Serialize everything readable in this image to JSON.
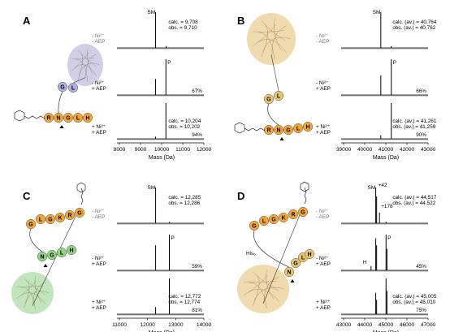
{
  "figure": {
    "panels": [
      {
        "letter": "A",
        "protein_color": "#a9a7d4",
        "beads_top": [
          "G",
          "L"
        ],
        "top_bead_color": "#b0aee0",
        "beads_bottom": [
          "R",
          "N",
          "G",
          "L",
          "H"
        ],
        "bottom_bead_color": "#f2a535",
        "his_label": "",
        "spectra": [
          {
            "cond": [
              "- Ni²⁺",
              "- AEP"
            ],
            "peak_labels": [
              "SM"
            ],
            "annot": [
              "calc. = 9,708",
              "obs. = 9,710"
            ],
            "pct": ""
          },
          {
            "cond": [
              "- Ni²⁺",
              "+ AEP"
            ],
            "peak_labels": [
              "P"
            ],
            "annot": [],
            "pct": "67%"
          },
          {
            "cond": [
              "+ Ni²⁺",
              "+ AEP"
            ],
            "peak_labels": [],
            "annot": [
              "calc. = 10,204",
              "obs. = 10,202"
            ],
            "pct": "94%"
          }
        ]
      },
      {
        "letter": "B",
        "protein_color": "#e3bd6c",
        "beads_top": [
          "G",
          "L"
        ],
        "top_bead_color": "#e9c46f",
        "beads_bottom": [
          "R",
          "N",
          "G",
          "L",
          "H"
        ],
        "bottom_bead_color": "#f2a535",
        "his_label": "",
        "spectra": [
          {
            "cond": [
              "- Ni²⁺",
              "- AEP"
            ],
            "peak_labels": [
              "SM"
            ],
            "annot": [
              "calc. (av.) = 40,764",
              "obs. (av.) = 40,762"
            ],
            "pct": ""
          },
          {
            "cond": [
              "- Ni²⁺",
              "+ AEP"
            ],
            "peak_labels": [
              "P"
            ],
            "annot": [],
            "pct": "66%"
          },
          {
            "cond": [
              "+ Ni²⁺",
              "+ AEP"
            ],
            "peak_labels": [],
            "annot": [
              "calc. (av.) = 41,261",
              "obs. (av.) = 41,259"
            ],
            "pct": "90%"
          }
        ]
      },
      {
        "letter": "C",
        "protein_color": "#8fcf86",
        "beads_top": [
          "G",
          "L",
          "G",
          "K",
          "R",
          "G"
        ],
        "top_bead_color": "#f2a535",
        "beads_bottom": [
          "N",
          "G",
          "L",
          "H"
        ],
        "bottom_bead_color": "#8fd47f",
        "his_label": "",
        "spectra": [
          {
            "cond": [
              "- Ni²⁺",
              "- AEP"
            ],
            "peak_labels": [
              "SM"
            ],
            "annot": [
              "calc. = 12,285",
              "obs. = 12,286"
            ],
            "pct": ""
          },
          {
            "cond": [
              "- Ni²⁺",
              "+ AEP"
            ],
            "peak_labels": [
              "P"
            ],
            "annot": [],
            "pct": "59%"
          },
          {
            "cond": [
              "+ Ni²⁺",
              "+ AEP"
            ],
            "peak_labels": [],
            "annot": [
              "calc. = 12,772",
              "obs. = 12,774"
            ],
            "pct": "81%"
          }
        ]
      },
      {
        "letter": "D",
        "protein_color": "#e3bd6c",
        "beads_top": [
          "G",
          "L",
          "G",
          "K",
          "R",
          "G"
        ],
        "top_bead_color": "#f2a535",
        "beads_bottom": [
          "N",
          "G",
          "L",
          "H"
        ],
        "bottom_bead_color": "#e9c46f",
        "his_label": "His₆",
        "spectra": [
          {
            "cond": [
              "- Ni²⁺",
              "- AEP"
            ],
            "peak_labels": [
              "SM",
              "+42",
              "+178"
            ],
            "annot": [
              "calc. (av.) = 44,517",
              "obs. (av.) = 44,522"
            ],
            "pct": ""
          },
          {
            "cond": [
              "- Ni²⁺",
              "+ AEP"
            ],
            "peak_labels": [
              "H",
              "P"
            ],
            "annot": [],
            "pct": "45%"
          },
          {
            "cond": [
              "+ Ni²⁺",
              "+ AEP"
            ],
            "peak_labels": [],
            "annot": [
              "calc. (av.) = 45,005",
              "obs. (av.) = 45,010"
            ],
            "pct": "75%"
          }
        ]
      }
    ]
  },
  "chart_data": [
    {
      "type": "line",
      "panel": "A",
      "xlabel": "Mass (Da)",
      "xlim": [
        8000,
        12000
      ],
      "xticks": [
        "8000",
        "9000",
        "10000",
        "11000",
        "12000"
      ],
      "series": [
        {
          "peaks": [
            {
              "x": 9710,
              "y": 1.0
            },
            {
              "x": 10220,
              "y": 0.05
            }
          ]
        },
        {
          "peaks": [
            {
              "x": 9710,
              "y": 0.45
            },
            {
              "x": 10202,
              "y": 1.0
            }
          ]
        },
        {
          "peaks": [
            {
              "x": 9710,
              "y": 0.06
            },
            {
              "x": 10202,
              "y": 1.0
            }
          ]
        }
      ]
    },
    {
      "type": "line",
      "panel": "B",
      "xlabel": "Mass (Da)",
      "xlim": [
        39000,
        43000
      ],
      "xticks": [
        "39000",
        "40000",
        "41000",
        "42000",
        "43000"
      ],
      "series": [
        {
          "peaks": [
            {
              "x": 40762,
              "y": 1.0
            },
            {
              "x": 41260,
              "y": 0.05
            }
          ]
        },
        {
          "peaks": [
            {
              "x": 40762,
              "y": 0.55
            },
            {
              "x": 41259,
              "y": 1.0
            }
          ]
        },
        {
          "peaks": [
            {
              "x": 40762,
              "y": 0.1
            },
            {
              "x": 41259,
              "y": 1.0
            }
          ]
        }
      ]
    },
    {
      "type": "line",
      "panel": "C",
      "xlabel": "Mass (Da)",
      "xlim": [
        11000,
        14000
      ],
      "xticks": [
        "11000",
        "12000",
        "13000",
        "14000"
      ],
      "series": [
        {
          "peaks": [
            {
              "x": 12286,
              "y": 1.0
            },
            {
              "x": 12780,
              "y": 0.04
            }
          ]
        },
        {
          "peaks": [
            {
              "x": 12286,
              "y": 0.7
            },
            {
              "x": 12774,
              "y": 1.0
            }
          ]
        },
        {
          "peaks": [
            {
              "x": 12286,
              "y": 0.2
            },
            {
              "x": 12774,
              "y": 1.0
            }
          ]
        }
      ]
    },
    {
      "type": "line",
      "panel": "D",
      "xlabel": "Mass (Da)",
      "xlim": [
        43000,
        47000
      ],
      "xticks": [
        "43000",
        "44000",
        "45000",
        "46000",
        "47000"
      ],
      "series": [
        {
          "peaks": [
            {
              "x": 44522,
              "y": 1.0
            },
            {
              "x": 44564,
              "y": 0.75
            },
            {
              "x": 44700,
              "y": 0.3
            },
            {
              "x": 45010,
              "y": 0.04
            }
          ]
        },
        {
          "peaks": [
            {
              "x": 44300,
              "y": 0.12
            },
            {
              "x": 44522,
              "y": 0.9
            },
            {
              "x": 44564,
              "y": 0.7
            },
            {
              "x": 45010,
              "y": 1.0
            },
            {
              "x": 45052,
              "y": 0.6
            }
          ]
        },
        {
          "peaks": [
            {
              "x": 44522,
              "y": 0.6
            },
            {
              "x": 44564,
              "y": 0.4
            },
            {
              "x": 45010,
              "y": 1.0
            },
            {
              "x": 45052,
              "y": 0.65
            }
          ]
        }
      ]
    }
  ]
}
